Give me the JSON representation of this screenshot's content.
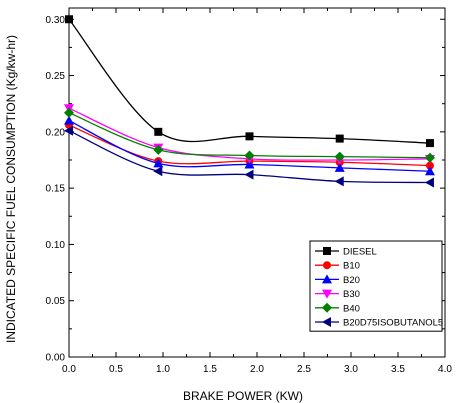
{
  "chart_data": {
    "type": "line",
    "xlabel": "BRAKE POWER (KW)",
    "ylabel": "INDICATED SPECIFIC FUEL CONSUMPTION (Kg/kw-hr)",
    "xlim": [
      0.0,
      4.0
    ],
    "ylim": [
      0.0,
      0.31
    ],
    "xticks": [
      "0.0",
      "0.5",
      "1.0",
      "1.5",
      "2.0",
      "2.5",
      "3.0",
      "3.5",
      "4.0"
    ],
    "yticks": [
      "0.00",
      "0.05",
      "0.10",
      "0.15",
      "0.20",
      "0.25",
      "0.30"
    ],
    "grid": false,
    "legend_position": "lower-right",
    "series": [
      {
        "name": "DIESEL",
        "color": "#000000",
        "marker": "square",
        "x": [
          0.0,
          0.95,
          1.92,
          2.88,
          3.84
        ],
        "y": [
          0.3,
          0.2,
          0.196,
          0.194,
          0.19
        ]
      },
      {
        "name": "B10",
        "color": "#ff0000",
        "marker": "circle",
        "x": [
          0.0,
          0.95,
          1.92,
          2.88,
          3.84
        ],
        "y": [
          0.206,
          0.174,
          0.174,
          0.173,
          0.17
        ]
      },
      {
        "name": "B20",
        "color": "#0000ff",
        "marker": "triangle-up",
        "x": [
          0.0,
          0.95,
          1.92,
          2.88,
          3.84
        ],
        "y": [
          0.21,
          0.172,
          0.171,
          0.168,
          0.165
        ]
      },
      {
        "name": "B30",
        "color": "#ff00ff",
        "marker": "triangle-down",
        "x": [
          0.0,
          0.95,
          1.92,
          2.88,
          3.84
        ],
        "y": [
          0.221,
          0.186,
          0.176,
          0.175,
          0.176
        ]
      },
      {
        "name": "B40",
        "color": "#008000",
        "marker": "diamond",
        "x": [
          0.0,
          0.95,
          1.92,
          2.88,
          3.84
        ],
        "y": [
          0.217,
          0.184,
          0.179,
          0.178,
          0.177
        ]
      },
      {
        "name": "B20D75ISOBUTANOL5",
        "color": "#000080",
        "marker": "triangle-left",
        "x": [
          0.0,
          0.95,
          1.92,
          2.88,
          3.84
        ],
        "y": [
          0.201,
          0.165,
          0.162,
          0.156,
          0.155
        ]
      }
    ]
  }
}
